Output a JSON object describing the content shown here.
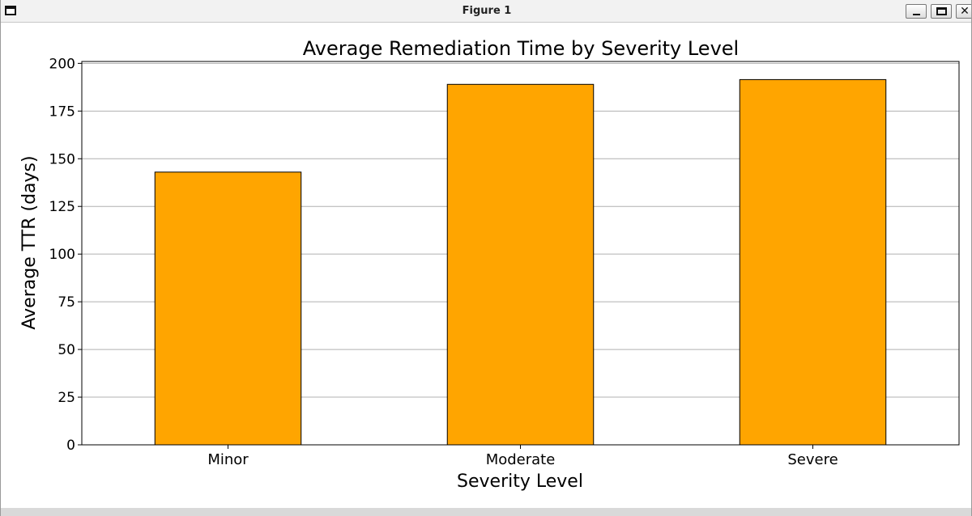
{
  "window": {
    "title": "Figure 1",
    "buttons": {
      "minimize_icon": "minimize-icon",
      "maximize_icon": "maximize-icon",
      "close_icon": "close-icon",
      "close_glyph": "✕"
    }
  },
  "chart_data": {
    "type": "bar",
    "title": "Average Remediation Time by Severity Level",
    "xlabel": "Severity Level",
    "ylabel": "Average TTR (days)",
    "categories": [
      "Minor",
      "Moderate",
      "Severe"
    ],
    "values": [
      143,
      189,
      191.5
    ],
    "ylim": [
      0,
      201
    ],
    "yticks": [
      0,
      25,
      50,
      75,
      100,
      125,
      150,
      175,
      200
    ],
    "grid": "y",
    "bar_color": "#FFA500",
    "bar_edge_color": "#000000",
    "grid_color": "#b0b0b0"
  }
}
